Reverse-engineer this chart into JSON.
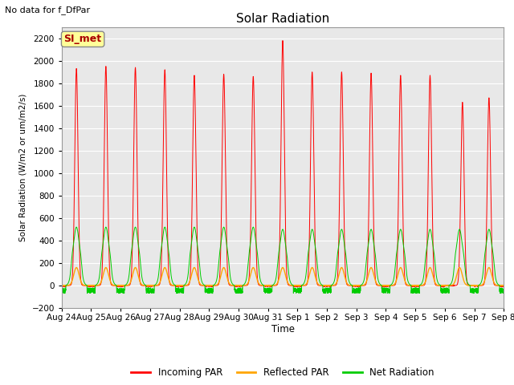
{
  "title": "Solar Radiation",
  "subtitle": "No data for f_DfPar",
  "ylabel": "Solar Radiation (W/m2 or um/m2/s)",
  "xlabel": "Time",
  "ylim": [
    -200,
    2300
  ],
  "yticks": [
    -200,
    0,
    200,
    400,
    600,
    800,
    1000,
    1200,
    1400,
    1600,
    1800,
    2000,
    2200
  ],
  "xtick_labels": [
    "Aug 24",
    "Aug 25",
    "Aug 26",
    "Aug 27",
    "Aug 28",
    "Aug 29",
    "Aug 30",
    "Aug 31",
    "Sep 1",
    "Sep 2",
    "Sep 3",
    "Sep 4",
    "Sep 5",
    "Sep 6",
    "Sep 7",
    "Sep 8"
  ],
  "legend_entries": [
    "Incoming PAR",
    "Reflected PAR",
    "Net Radiation"
  ],
  "line_colors": {
    "incoming": "#ff0000",
    "reflected": "#ffa500",
    "net": "#00cc00"
  },
  "fig_bg_color": "#ffffff",
  "plot_bg_color": "#e8e8e8",
  "grid_color": "#ffffff",
  "annotation_box": {
    "text": "SI_met",
    "bg_color": "#ffff99",
    "text_color": "#aa0000",
    "border_color": "#888888"
  },
  "n_days": 15,
  "points_per_day": 288,
  "peak_heights_incoming": [
    1930,
    1950,
    1940,
    1920,
    1870,
    1880,
    1860,
    2180,
    1900,
    1900,
    1890,
    1870,
    1870,
    1630,
    1670
  ],
  "sigma_incoming": 0.055,
  "peak_reflected": 160,
  "sigma_reflected": 0.09,
  "peak_net": 520,
  "sigma_net": 0.11,
  "night_threshold": 0.14
}
